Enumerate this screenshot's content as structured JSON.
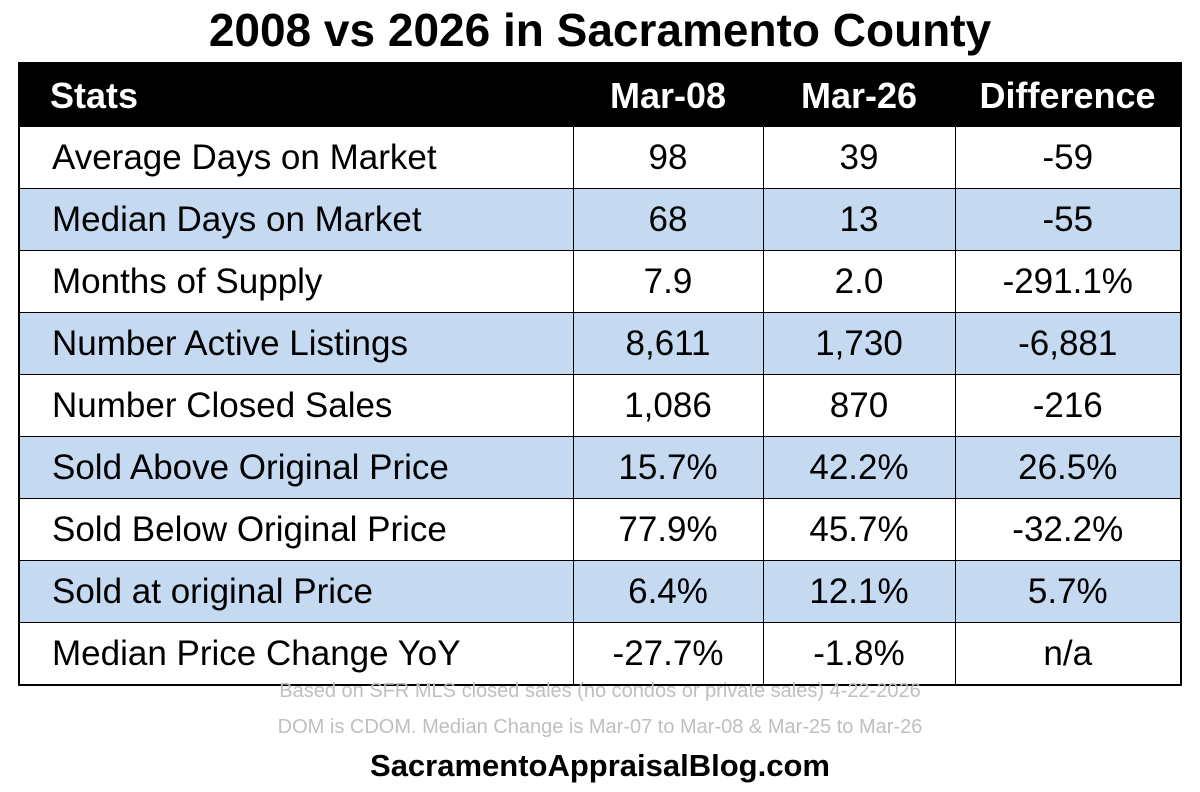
{
  "chart_data": {
    "type": "table",
    "title": "2008 vs 2026 in Sacramento County",
    "columns": [
      "Stats",
      "Mar-08",
      "Mar-26",
      "Difference"
    ],
    "rows": [
      [
        "Average Days on Market",
        "98",
        "39",
        "-59"
      ],
      [
        "Median Days on Market",
        "68",
        "13",
        "-55"
      ],
      [
        "Months of Supply",
        "7.9",
        "2.0",
        "-291.1%"
      ],
      [
        "Number Active Listings",
        "8,611",
        "1,730",
        "-6,881"
      ],
      [
        "Number Closed Sales",
        "1,086",
        "870",
        "-216"
      ],
      [
        "Sold Above Original Price",
        "15.7%",
        "42.2%",
        "26.5%"
      ],
      [
        "Sold Below Original Price",
        "77.9%",
        "45.7%",
        "-32.2%"
      ],
      [
        "Sold at original Price",
        "6.4%",
        "12.1%",
        "5.7%"
      ],
      [
        "Median Price Change YoY",
        "-27.7%",
        "-1.8%",
        "n/a"
      ]
    ],
    "header_color": "#000000",
    "stripe_color": "#c5d9f1"
  },
  "footer": {
    "note1": "Based on SFR MLS closed sales (no condos or private sales) 4-22-2026",
    "note2": "DOM is CDOM. Median Change is Mar-07 to Mar-08 & Mar-25 to Mar-26",
    "site": "SacramentoAppraisalBlog.com"
  }
}
